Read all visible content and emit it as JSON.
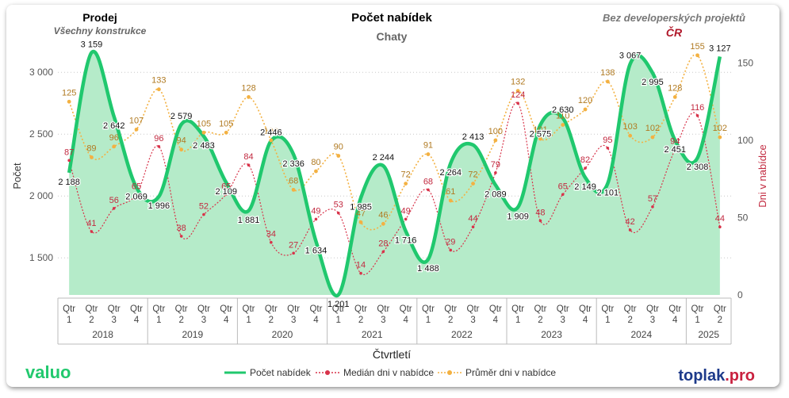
{
  "header": {
    "left_title": "Prodej",
    "left_subtitle": "Všechny konstrukce",
    "center_title": "Počet nabídek",
    "center_subtitle": "Chaty",
    "right_title": "Bez developerských projektů",
    "right_subtitle": "ČR"
  },
  "brand": {
    "left": "valuo",
    "right_main": "toplak",
    "right_suffix": ".pro"
  },
  "colors": {
    "count": "#20c86e",
    "area": "#b5ebc9",
    "median": "#d8334a",
    "average": "#f3b142",
    "count_label": "#111111",
    "median_label": "#c22a40",
    "average_label": "#b07a22"
  },
  "chart_data": {
    "type": "line",
    "title": "Počet nabídek",
    "xlabel": "Čtvrtletí",
    "ylabel": "Počet",
    "y2label": "Dni v nabídce",
    "ylim": [
      1200,
      3200
    ],
    "y_ticks": [
      1500,
      2000,
      2500,
      3000
    ],
    "y_tick_labels": [
      "1 500",
      "2 000",
      "2 500",
      "3 000"
    ],
    "y2lim": [
      0,
      160
    ],
    "y2_ticks": [
      0,
      50,
      100,
      150
    ],
    "y2_tick_labels": [
      "0",
      "50",
      "100",
      "150"
    ],
    "years": [
      "2018",
      "2019",
      "2020",
      "2021",
      "2022",
      "2023",
      "2024",
      "2025"
    ],
    "categories": [
      [
        "Qtr",
        "1"
      ],
      [
        "Qtr",
        "2"
      ],
      [
        "Qtr",
        "3"
      ],
      [
        "Qtr",
        "4"
      ],
      [
        "Qtr",
        "1"
      ],
      [
        "Qtr",
        "2"
      ],
      [
        "Qtr",
        "3"
      ],
      [
        "Qtr",
        "4"
      ],
      [
        "Qtr",
        "1"
      ],
      [
        "Qtr",
        "2"
      ],
      [
        "Qtr",
        "3"
      ],
      [
        "Qtr",
        "4"
      ],
      [
        "Qtr",
        "1"
      ],
      [
        "Qtr",
        "2"
      ],
      [
        "Qtr",
        "3"
      ],
      [
        "Qtr",
        "4"
      ],
      [
        "Qtr",
        "1"
      ],
      [
        "Qtr",
        "2"
      ],
      [
        "Qtr",
        "3"
      ],
      [
        "Qtr",
        "4"
      ],
      [
        "Qtr",
        "1"
      ],
      [
        "Qtr",
        "2"
      ],
      [
        "Qtr",
        "3"
      ],
      [
        "Qtr",
        "4"
      ],
      [
        "Qtr",
        "1"
      ],
      [
        "Qtr",
        "2"
      ],
      [
        "Qtr",
        "3"
      ],
      [
        "Qtr",
        "4"
      ],
      [
        "Qtr",
        "1"
      ],
      [
        "Qtr",
        "2"
      ]
    ],
    "series": [
      {
        "name": "Počet nabídek",
        "axis": "left",
        "values": [
          2188,
          3159,
          2642,
          2069,
          1996,
          2579,
          2483,
          2109,
          1881,
          2446,
          2336,
          1634,
          1201,
          1985,
          2244,
          1716,
          1488,
          2264,
          2413,
          2089,
          1909,
          2575,
          2630,
          2149,
          2101,
          3067,
          2995,
          2451,
          2308,
          3127
        ],
        "labels": [
          "2 188",
          "3 159",
          "2 642",
          "2 069",
          "1 996",
          "2 579",
          "2 483",
          "2 109",
          "1 881",
          "2 446",
          "2 336",
          "1 634",
          "1 201",
          "1 985",
          "2 244",
          "1 716",
          "1 488",
          "2 264",
          "2 413",
          "2 089",
          "1 909",
          "2 575",
          "2 630",
          "2 149",
          "2 101",
          "3 067",
          "2 995",
          "2 451",
          "2 308",
          "3 127"
        ]
      },
      {
        "name": "Medián dni v nabídce",
        "axis": "right",
        "values": [
          87,
          41,
          56,
          65,
          96,
          38,
          52,
          65,
          84,
          34,
          27,
          49,
          53,
          14,
          28,
          49,
          68,
          29,
          44,
          79,
          124,
          48,
          65,
          82,
          95,
          42,
          57,
          94,
          116,
          44
        ]
      },
      {
        "name": "Průměr dni v nabídce",
        "axis": "right",
        "values": [
          125,
          89,
          96,
          107,
          133,
          94,
          105,
          105,
          128,
          100,
          68,
          80,
          90,
          47,
          46,
          72,
          91,
          61,
          72,
          100,
          132,
          101,
          110,
          120,
          138,
          103,
          102,
          128,
          155,
          102
        ]
      }
    ],
    "legend": [
      "Počet nabídek",
      "Medián dni v nabídce",
      "Průměr dni v nabídce"
    ],
    "legend_position": "bottom",
    "grid": true
  }
}
